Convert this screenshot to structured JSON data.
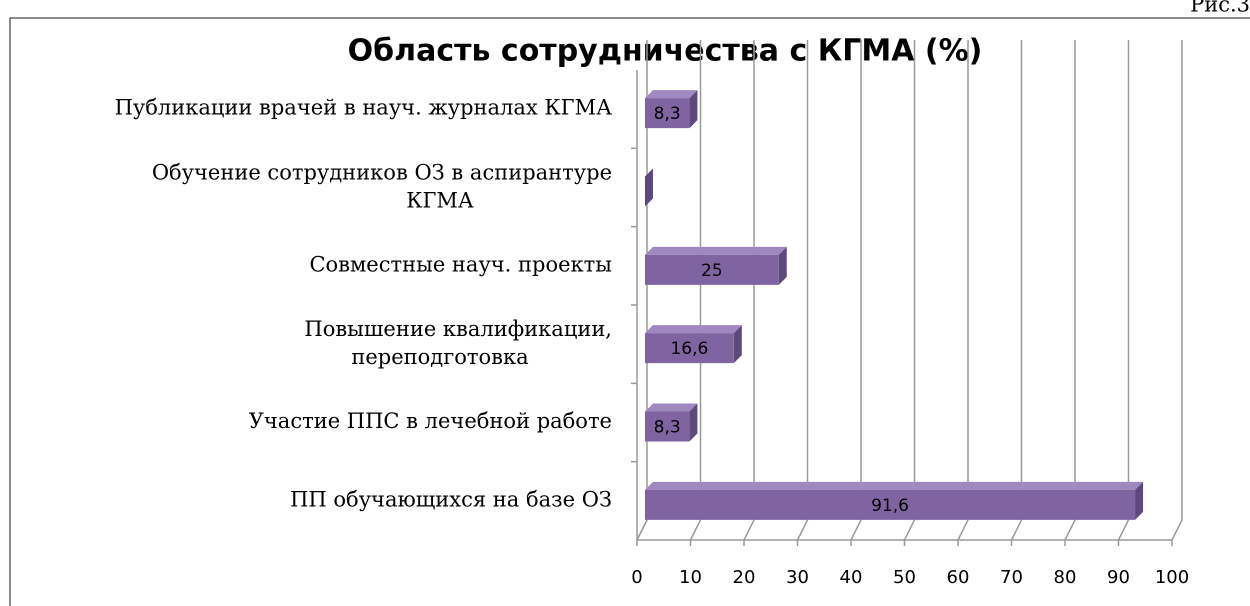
{
  "figure_label": "Рис.3",
  "chart_data": {
    "type": "bar",
    "orientation": "horizontal",
    "title": "Область сотрудничества с КГМА (%)",
    "categories": [
      "Публикации врачей в науч. журналах КГМА",
      "Обучение сотрудников ОЗ в аспирантуре\nКГМА",
      "Совместные науч. проекты",
      "Повышение квалификации,\nпереподготовка",
      "Участие ППС в лечебной работе",
      "ПП обучающихся на базе ОЗ"
    ],
    "values": [
      8.3,
      0,
      25,
      16.6,
      8.3,
      91.6
    ],
    "value_labels": [
      "8,3",
      null,
      "25",
      "16,6",
      "8,3",
      "91,6"
    ],
    "color": "#8064a2",
    "xlim": [
      0,
      100
    ],
    "xticks": [
      0,
      10,
      20,
      30,
      40,
      50,
      60,
      70,
      80,
      90,
      100
    ],
    "grid": true
  }
}
